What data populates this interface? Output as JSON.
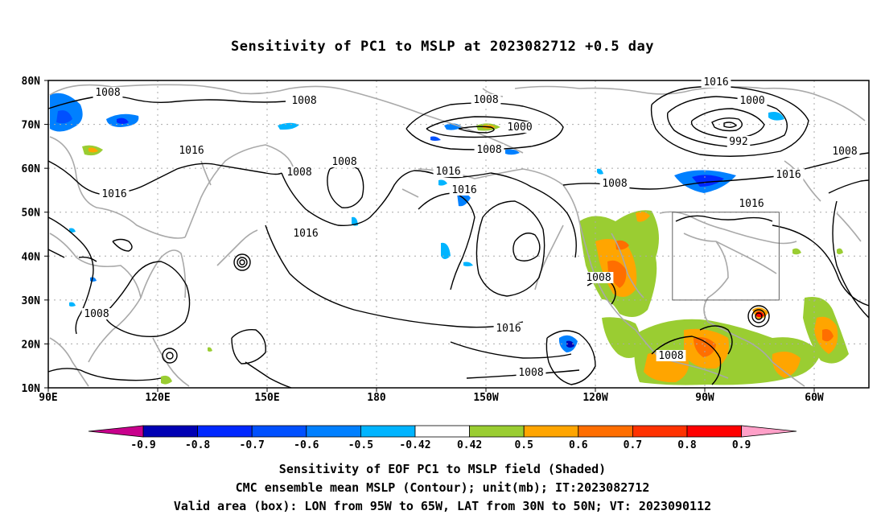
{
  "title": "Sensitivity of PC1 to MSLP at 2023082712 +0.5 day",
  "map": {
    "lat_labels": [
      "80N",
      "70N",
      "60N",
      "50N",
      "40N",
      "30N",
      "20N",
      "10N"
    ],
    "lon_labels": [
      "90E",
      "120E",
      "150E",
      "180",
      "150W",
      "120W",
      "90W",
      "60W"
    ],
    "contour_labels": [
      "1008",
      "1008",
      "1008",
      "1016",
      "1016",
      "1008",
      "1008",
      "1008",
      "1000",
      "1008",
      "1016",
      "1016",
      "1016",
      "1008",
      "1000",
      "992",
      "1016",
      "1008",
      "1016",
      "1016",
      "1008",
      "1016",
      "1008",
      "1008"
    ],
    "valid_box": {
      "lon": [
        "95W",
        "65W"
      ],
      "lat": [
        "30N",
        "50N"
      ]
    }
  },
  "colorbar": {
    "labels": [
      "-0.9",
      "-0.8",
      "-0.7",
      "-0.6",
      "-0.5",
      "-0.42",
      "0.42",
      "0.5",
      "0.6",
      "0.7",
      "0.8",
      "0.9"
    ],
    "colors": [
      "#0000b4",
      "#0028ff",
      "#0050ff",
      "#0080ff",
      "#00b4ff",
      "#ffffff",
      "#9acd32",
      "#ffa500",
      "#ff6e00",
      "#ff3200",
      "#ff0000"
    ],
    "low_end_color": "#c8008c",
    "high_end_color": "#ffa0c8"
  },
  "captions": [
    "Sensitivity of EOF PC1 to MSLP field (Shaded)",
    "CMC ensemble mean MSLP (Contour); unit(mb); IT:2023082712",
    "Valid area (box): LON from 95W to 65W, LAT from 30N to 50N; VT: 2023090112"
  ]
}
